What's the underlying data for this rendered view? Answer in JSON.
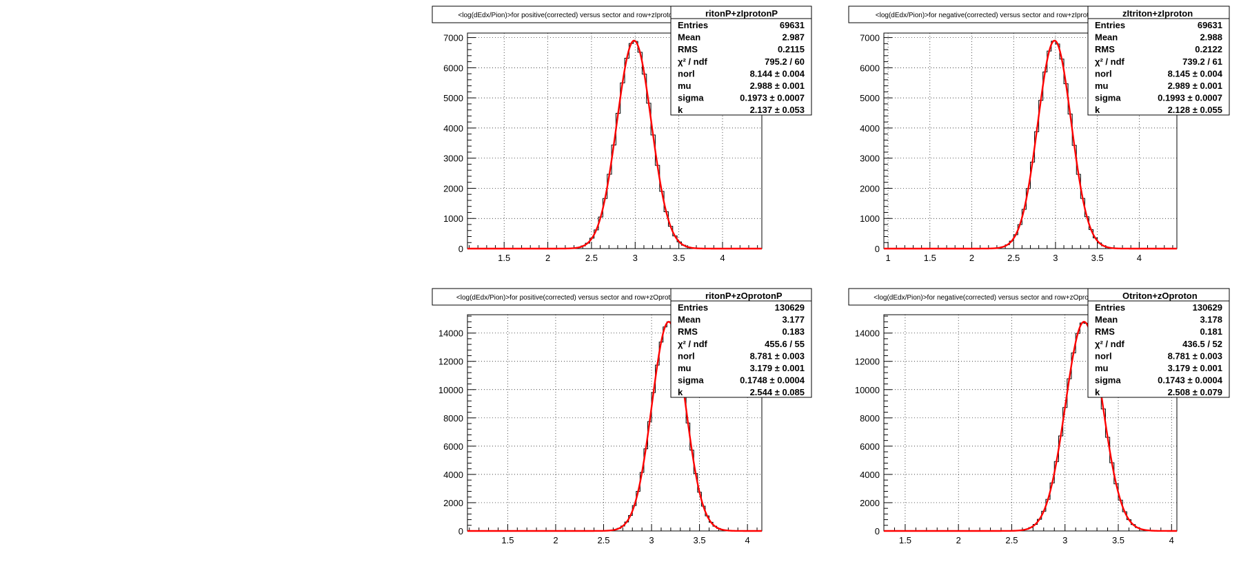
{
  "canvas": {
    "background": "#ffffff"
  },
  "chart_data": [
    {
      "type": "histogram",
      "title": "<log(dEdx/Pion)>for positive(corrected) versus sector and row+zIprotonP",
      "hist_name": "ritonP+zIprotonP",
      "x_ticks": [
        1.5,
        2,
        2.5,
        3,
        3.5,
        4
      ],
      "x_tick_labels": [
        "1.5",
        "2",
        "2.5",
        "3",
        "3.5",
        "4"
      ],
      "xlim": [
        1.08,
        4.45
      ],
      "ylim": [
        0,
        7150
      ],
      "y_ticks": [
        0,
        1000,
        2000,
        3000,
        4000,
        5000,
        6000,
        7000
      ],
      "y_tick_labels": [
        "0",
        "1000",
        "2000",
        "3000",
        "4000",
        "5000",
        "6000",
        "7000"
      ],
      "grid": true,
      "fit": {
        "peak": 6900,
        "mu": 2.988,
        "sigma": 0.1973,
        "color": "#ff0000"
      },
      "bin_width": 0.05,
      "stats": [
        {
          "label": "Entries",
          "value": "69631"
        },
        {
          "label": "Mean",
          "value": "2.987"
        },
        {
          "label": "RMS",
          "value": "0.2115"
        },
        {
          "label": "χ² / ndf",
          "value": "795.2 / 60"
        },
        {
          "label": "norl",
          "value": "8.144 ± 0.004"
        },
        {
          "label": "mu",
          "value": "2.988 ± 0.001"
        },
        {
          "label": "sigma",
          "value": "0.1973 ± 0.0007"
        },
        {
          "label": "k",
          "value": "2.137 ± 0.053"
        }
      ]
    },
    {
      "type": "histogram",
      "title": "<log(dEdx/Pion)>for negative(corrected) versus sector and row+zIproton",
      "hist_name": "zItriton+zIproton",
      "x_ticks": [
        1,
        1.5,
        2,
        2.5,
        3,
        3.5,
        4
      ],
      "x_tick_labels": [
        "1",
        "1.5",
        "2",
        "2.5",
        "3",
        "3.5",
        "4"
      ],
      "xlim": [
        0.95,
        4.45
      ],
      "ylim": [
        0,
        7150
      ],
      "y_ticks": [
        0,
        1000,
        2000,
        3000,
        4000,
        5000,
        6000,
        7000
      ],
      "y_tick_labels": [
        "0",
        "1000",
        "2000",
        "3000",
        "4000",
        "5000",
        "6000",
        "7000"
      ],
      "grid": true,
      "fit": {
        "peak": 6900,
        "mu": 2.989,
        "sigma": 0.1993,
        "color": "#ff0000"
      },
      "bin_width": 0.05,
      "stats": [
        {
          "label": "Entries",
          "value": "69631"
        },
        {
          "label": "Mean",
          "value": "2.988"
        },
        {
          "label": "RMS",
          "value": "0.2122"
        },
        {
          "label": "χ² / ndf",
          "value": "739.2 / 61"
        },
        {
          "label": "norl",
          "value": "8.145 ± 0.004"
        },
        {
          "label": "mu",
          "value": "2.989 ± 0.001"
        },
        {
          "label": "sigma",
          "value": "0.1993 ± 0.0007"
        },
        {
          "label": "k",
          "value": "2.128 ± 0.055"
        }
      ]
    },
    {
      "type": "histogram",
      "title": "<log(dEdx/Pion)>for positive(corrected) versus sector and row+zOprotonP",
      "hist_name": "ritonP+zOprotonP",
      "x_ticks": [
        1.5,
        2,
        2.5,
        3,
        3.5,
        4
      ],
      "x_tick_labels": [
        "1.5",
        "2",
        "2.5",
        "3",
        "3.5",
        "4"
      ],
      "xlim": [
        1.08,
        4.15
      ],
      "ylim": [
        0,
        15300
      ],
      "y_ticks": [
        0,
        2000,
        4000,
        6000,
        8000,
        10000,
        12000,
        14000
      ],
      "y_tick_labels": [
        "0",
        "2000",
        "4000",
        "6000",
        "8000",
        "10000",
        "12000",
        "14000"
      ],
      "grid": true,
      "fit": {
        "peak": 14800,
        "mu": 3.179,
        "sigma": 0.1748,
        "color": "#ff0000"
      },
      "bin_width": 0.04,
      "stats": [
        {
          "label": "Entries",
          "value": "130629"
        },
        {
          "label": "Mean",
          "value": "3.177"
        },
        {
          "label": "RMS",
          "value": "0.183"
        },
        {
          "label": "χ² / ndf",
          "value": "455.6 / 55"
        },
        {
          "label": "norl",
          "value": "8.781 ± 0.003"
        },
        {
          "label": "mu",
          "value": "3.179 ± 0.001"
        },
        {
          "label": "sigma",
          "value": "0.1748 ± 0.0004"
        },
        {
          "label": "k",
          "value": "2.544 ± 0.085"
        }
      ]
    },
    {
      "type": "histogram",
      "title": "<log(dEdx/Pion)>for negative(corrected) versus sector and row+zOproton",
      "hist_name": "Otriton+zOproton",
      "x_ticks": [
        1.5,
        2,
        2.5,
        3,
        3.5,
        4
      ],
      "x_tick_labels": [
        "1.5",
        "2",
        "2.5",
        "3",
        "3.5",
        "4"
      ],
      "xlim": [
        1.3,
        4.05
      ],
      "ylim": [
        0,
        15300
      ],
      "y_ticks": [
        0,
        2000,
        4000,
        6000,
        8000,
        10000,
        12000,
        14000
      ],
      "y_tick_labels": [
        "0",
        "2000",
        "4000",
        "6000",
        "8000",
        "10000",
        "12000",
        "14000"
      ],
      "grid": true,
      "fit": {
        "peak": 14800,
        "mu": 3.179,
        "sigma": 0.1743,
        "color": "#ff0000"
      },
      "bin_width": 0.04,
      "stats": [
        {
          "label": "Entries",
          "value": "130629"
        },
        {
          "label": "Mean",
          "value": "3.178"
        },
        {
          "label": "RMS",
          "value": "0.181"
        },
        {
          "label": "χ² / ndf",
          "value": "436.5 / 52"
        },
        {
          "label": "norl",
          "value": "8.781 ± 0.003"
        },
        {
          "label": "mu",
          "value": "3.179 ± 0.001"
        },
        {
          "label": "sigma",
          "value": "0.1743 ± 0.0004"
        },
        {
          "label": "k",
          "value": "2.508 ± 0.079"
        }
      ]
    }
  ]
}
